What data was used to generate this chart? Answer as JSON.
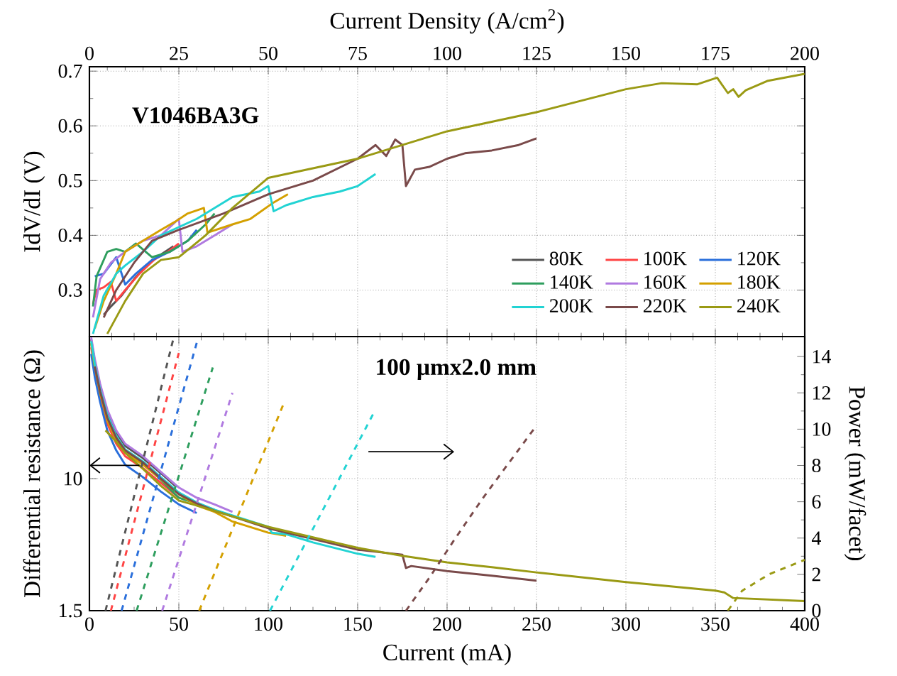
{
  "chart_data": [
    {
      "type": "line",
      "x2label": "Current Density (A/cm$^{2}$)",
      "ylabel": "IdV/dI (V)",
      "annotations": [
        "V1046BA3G"
      ],
      "xlim": [
        0,
        400
      ],
      "xticks": [
        0,
        50,
        100,
        150,
        200,
        250,
        300,
        350,
        400
      ],
      "x2lim": [
        0,
        200
      ],
      "x2ticks": [
        0,
        25,
        50,
        75,
        100,
        125,
        150,
        175,
        200
      ],
      "ylim": [
        0.215,
        0.708
      ],
      "yticks": [
        0.3,
        0.4,
        0.5,
        0.6,
        0.7
      ],
      "tick_labels": "y",
      "grid": true,
      "legend": "bottom right",
      "series": [
        {
          "name": "80K",
          "color": "#555555",
          "x": [
            8,
            12,
            18,
            25,
            32,
            40,
            47
          ],
          "values": [
            0.255,
            0.27,
            0.29,
            0.32,
            0.345,
            0.365,
            0.38
          ]
        },
        {
          "name": "100K",
          "color": "#ff4444",
          "x": [
            2,
            4,
            8,
            12,
            15,
            20,
            28,
            36,
            44,
            50
          ],
          "values": [
            0.275,
            0.3,
            0.305,
            0.315,
            0.28,
            0.3,
            0.33,
            0.355,
            0.37,
            0.385
          ]
        },
        {
          "name": "120K",
          "color": "#2a6fdb",
          "x": [
            3,
            8,
            15,
            20,
            26,
            35,
            45,
            55,
            60
          ],
          "values": [
            0.325,
            0.33,
            0.36,
            0.31,
            0.33,
            0.355,
            0.37,
            0.39,
            0.41
          ]
        },
        {
          "name": "140K",
          "color": "#2e9e5e",
          "x": [
            2,
            4,
            10,
            15,
            20,
            26,
            35,
            45,
            55,
            65,
            70
          ],
          "values": [
            0.27,
            0.325,
            0.37,
            0.375,
            0.37,
            0.385,
            0.36,
            0.37,
            0.39,
            0.42,
            0.44
          ]
        },
        {
          "name": "160K",
          "color": "#b07ae0",
          "x": [
            2,
            6,
            12,
            20,
            30,
            40,
            50,
            52,
            60,
            70,
            80
          ],
          "values": [
            0.25,
            0.32,
            0.35,
            0.37,
            0.39,
            0.4,
            0.43,
            0.37,
            0.38,
            0.4,
            0.42
          ]
        },
        {
          "name": "180K",
          "color": "#d4a000",
          "x": [
            3,
            8,
            15,
            20,
            30,
            40,
            48,
            55,
            64,
            66,
            80,
            90,
            103,
            111
          ],
          "values": [
            0.23,
            0.28,
            0.33,
            0.37,
            0.39,
            0.41,
            0.425,
            0.44,
            0.45,
            0.405,
            0.42,
            0.43,
            0.46,
            0.475
          ]
        },
        {
          "name": "200K",
          "color": "#22d3d3",
          "x": [
            2,
            8,
            15,
            20,
            30,
            40,
            60,
            80,
            95,
            100,
            103,
            110,
            125,
            140,
            150,
            160
          ],
          "values": [
            0.22,
            0.29,
            0.33,
            0.345,
            0.37,
            0.4,
            0.43,
            0.47,
            0.48,
            0.49,
            0.444,
            0.455,
            0.47,
            0.48,
            0.49,
            0.512
          ]
        },
        {
          "name": "220K",
          "color": "#7a4a4a",
          "x": [
            8,
            15,
            25,
            35,
            50,
            75,
            100,
            125,
            150,
            160,
            166,
            171,
            175,
            177,
            182,
            190,
            200,
            210,
            225,
            240,
            250
          ],
          "values": [
            0.25,
            0.3,
            0.35,
            0.39,
            0.41,
            0.44,
            0.475,
            0.5,
            0.54,
            0.565,
            0.545,
            0.575,
            0.565,
            0.49,
            0.52,
            0.525,
            0.54,
            0.55,
            0.555,
            0.565,
            0.577
          ]
        },
        {
          "name": "240K",
          "color": "#9a9a14",
          "x": [
            10,
            20,
            30,
            40,
            50,
            65,
            80,
            100,
            150,
            200,
            250,
            300,
            320,
            340,
            351,
            357,
            360,
            363,
            367,
            379,
            400
          ],
          "values": [
            0.22,
            0.28,
            0.33,
            0.355,
            0.36,
            0.4,
            0.45,
            0.505,
            0.54,
            0.59,
            0.625,
            0.667,
            0.678,
            0.676,
            0.688,
            0.66,
            0.667,
            0.653,
            0.665,
            0.682,
            0.695
          ]
        }
      ]
    },
    {
      "type": "line",
      "xlabel": "Current (mA)",
      "ylabel": "Differential resistance (Ω)",
      "y2label": "Power (mW/facet)",
      "annotations": [
        "100 µmx2.0 mm"
      ],
      "xlim": [
        0,
        400
      ],
      "xticks": [
        0,
        50,
        100,
        150,
        200,
        250,
        300,
        350,
        400
      ],
      "ylim": [
        1.5,
        77
      ],
      "yticks": [
        1.5,
        10
      ],
      "log": "y",
      "y2lim": [
        0,
        15.1
      ],
      "y2ticks": [
        0,
        2,
        4,
        6,
        8,
        10,
        12,
        14
      ],
      "grid": true,
      "series": [
        {
          "color": "#555555",
          "x": [
            1,
            3,
            6,
            10,
            15,
            20,
            30,
            40,
            48
          ],
          "values": [
            74,
            54,
            38,
            26,
            19.5,
            16,
            13.4,
            10.8,
            9.0
          ]
        },
        {
          "color": "#ff4444",
          "x": [
            1,
            3,
            6,
            10,
            15,
            20,
            30,
            40,
            50
          ],
          "values": [
            66,
            47,
            33,
            22,
            16.5,
            13.8,
            11.6,
            9.4,
            7.6
          ]
        },
        {
          "color": "#2a6fdb",
          "x": [
            1,
            3,
            6,
            10,
            15,
            20,
            30,
            40,
            50,
            60
          ],
          "values": [
            60,
            43,
            30,
            20,
            15,
            12.2,
            10.2,
            8.3,
            6.9,
            6.1
          ]
        },
        {
          "color": "#2e9e5e",
          "x": [
            1,
            3,
            6,
            10,
            15,
            20,
            30,
            40,
            50,
            60,
            70
          ],
          "values": [
            70,
            50,
            35,
            24,
            18,
            15,
            12.6,
            9.8,
            7.6,
            7.0,
            6.4
          ]
        },
        {
          "color": "#b07ae0",
          "x": [
            1,
            3,
            6,
            10,
            15,
            20,
            30,
            40,
            50,
            60,
            70,
            80
          ],
          "values": [
            76,
            56,
            39,
            27,
            20,
            16.5,
            13.8,
            11,
            8.8,
            7.6,
            6.9,
            6.2
          ]
        },
        {
          "color": "#d4a000",
          "x": [
            1,
            3,
            6,
            10,
            15,
            20,
            30,
            40,
            50,
            60,
            70,
            80,
            100,
            110
          ],
          "values": [
            70,
            50,
            34,
            23,
            17.5,
            14.5,
            12.2,
            9.9,
            8.0,
            6.8,
            6.2,
            5.4,
            4.6,
            4.4
          ]
        },
        {
          "color": "#22d3d3",
          "x": [
            1,
            3,
            6,
            10,
            15,
            20,
            30,
            40,
            50,
            60,
            70,
            80,
            100,
            102,
            110,
            125,
            150,
            160
          ],
          "values": [
            72,
            52,
            36,
            25,
            18.5,
            15.2,
            12.8,
            10.2,
            8.2,
            7.1,
            6.4,
            5.9,
            5.0,
            4.6,
            4.5,
            4.0,
            3.4,
            3.25
          ]
        },
        {
          "color": "#7a4a4a",
          "x": [
            3,
            6,
            10,
            15,
            20,
            30,
            40,
            50,
            60,
            70,
            80,
            100,
            125,
            150,
            165,
            175,
            177,
            180,
            200,
            225,
            250
          ],
          "values": [
            50,
            35,
            24,
            18,
            15,
            12.6,
            10,
            8.0,
            7.0,
            6.3,
            5.8,
            4.9,
            4.2,
            3.6,
            3.45,
            3.35,
            2.77,
            2.85,
            2.65,
            2.48,
            2.31
          ]
        },
        {
          "color": "#9a9a14",
          "x": [
            9,
            15,
            20,
            30,
            40,
            50,
            60,
            70,
            80,
            100,
            125,
            150,
            175,
            200,
            225,
            250,
            300,
            350,
            355,
            360,
            400
          ],
          "values": [
            20,
            17,
            14.5,
            11.5,
            9.0,
            7.3,
            6.8,
            6.3,
            5.8,
            5.0,
            4.3,
            3.7,
            3.3,
            3.0,
            2.8,
            2.6,
            2.26,
            2.0,
            1.95,
            1.8,
            1.72
          ]
        },
        {
          "color": "#555555",
          "axis": "y2",
          "line_style": "dashed",
          "x": [
            9,
            47
          ],
          "values": [
            0,
            15
          ]
        },
        {
          "color": "#ff4444",
          "axis": "y2",
          "line_style": "dashed",
          "x": [
            12,
            50
          ],
          "values": [
            0,
            14.2
          ]
        },
        {
          "color": "#2a6fdb",
          "axis": "y2",
          "line_style": "dashed",
          "x": [
            18,
            60
          ],
          "values": [
            0,
            14.75
          ]
        },
        {
          "color": "#2e9e5e",
          "axis": "y2",
          "line_style": "dashed",
          "x": [
            26.4,
            69
          ],
          "values": [
            0,
            13.4
          ]
        },
        {
          "color": "#b07ae0",
          "axis": "y2",
          "line_style": "dashed",
          "x": [
            40.7,
            80
          ],
          "values": [
            0,
            12
          ]
        },
        {
          "color": "#d4a000",
          "axis": "y2",
          "line_style": "dashed",
          "x": [
            61.4,
            109
          ],
          "values": [
            0,
            11.5
          ]
        },
        {
          "color": "#22d3d3",
          "axis": "y2",
          "line_style": "dashed",
          "x": [
            101,
            159
          ],
          "values": [
            0,
            10.9
          ]
        },
        {
          "color": "#7a4a4a",
          "axis": "y2",
          "line_style": "dashed",
          "x": [
            177,
            190,
            204,
            220,
            235,
            250
          ],
          "values": [
            0,
            1.8,
            3.9,
            6.2,
            8.2,
            10.2
          ]
        },
        {
          "color": "#9a9a14",
          "axis": "y2",
          "line_style": "dashed",
          "x": [
            357,
            365,
            380,
            400
          ],
          "values": [
            0,
            1.1,
            2.0,
            2.8
          ]
        }
      ]
    }
  ]
}
